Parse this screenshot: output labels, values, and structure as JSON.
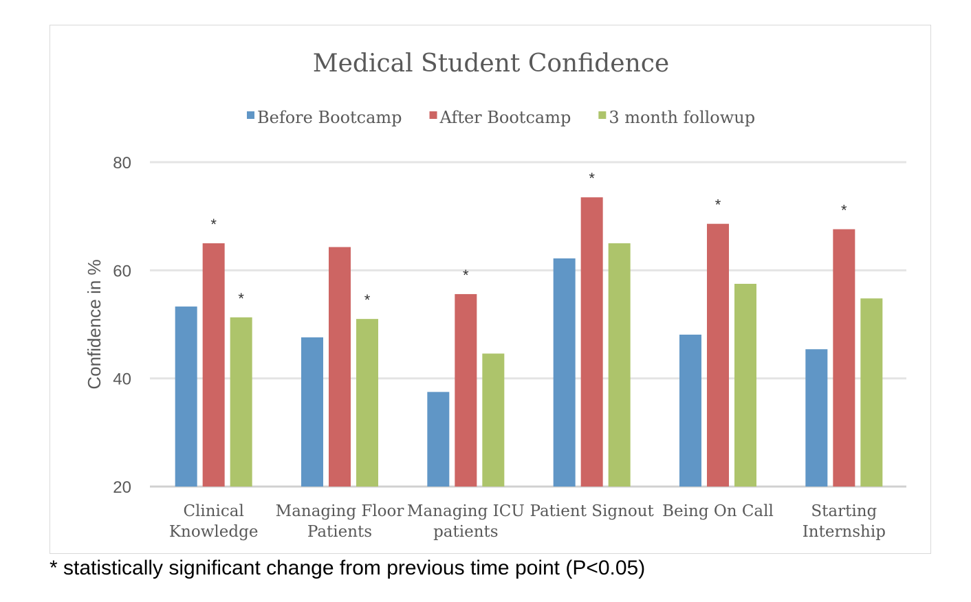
{
  "chart_data": {
    "type": "bar",
    "title": "Medical Student Confidence",
    "ylabel": "Confidence in %",
    "ylim": [
      20,
      80
    ],
    "yticks": [
      20,
      40,
      60,
      80
    ],
    "grid": true,
    "legend_position": "top",
    "categories": [
      [
        "Clinical",
        "Knowledge"
      ],
      [
        "Managing Floor",
        "Patients"
      ],
      [
        "Managing ICU",
        "patients"
      ],
      [
        "Patient Signout"
      ],
      [
        "Being On Call"
      ],
      [
        "Starting",
        "Internship"
      ]
    ],
    "series": [
      {
        "name": "Before Bootcamp",
        "color": "#6096c6",
        "values": [
          53.3,
          47.6,
          37.5,
          62.2,
          48.1,
          45.4
        ]
      },
      {
        "name": "After Bootcamp",
        "color": "#cd6563",
        "values": [
          65.0,
          64.3,
          55.6,
          73.5,
          68.6,
          67.6
        ]
      },
      {
        "name": "3 month followup",
        "color": "#adc46b",
        "values": [
          51.3,
          51.0,
          44.6,
          65.0,
          57.5,
          54.8
        ]
      }
    ],
    "significance_marker": "*",
    "significant": [
      [
        false,
        true,
        true
      ],
      [
        false,
        false,
        true
      ],
      [
        false,
        true,
        false
      ],
      [
        false,
        true,
        false
      ],
      [
        false,
        true,
        false
      ],
      [
        false,
        true,
        false
      ]
    ]
  },
  "footnote": "* statistically significant change from previous time point (P<0.05)"
}
